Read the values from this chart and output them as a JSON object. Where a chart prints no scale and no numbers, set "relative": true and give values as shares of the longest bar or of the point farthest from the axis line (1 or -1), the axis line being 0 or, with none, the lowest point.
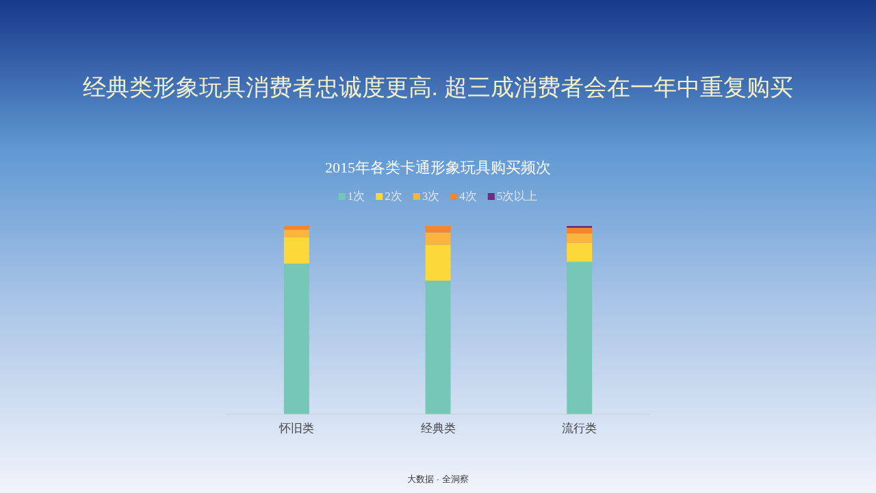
{
  "chart_data": {
    "type": "bar",
    "stacked": true,
    "relative": true,
    "legend": "top",
    "title": "经典类形象玩具消费者忠诚度更高. 超三成消费者会在一年中重复购买",
    "subtitle": "2015年各类卡通形象玩具购买频次",
    "categories": [
      "怀旧类",
      "经典类",
      "流行类"
    ],
    "series": [
      {
        "name": "1次",
        "color": "#76c7b7",
        "values": [
          0.8,
          0.71,
          0.81
        ]
      },
      {
        "name": "2次",
        "color": "#fdd83a",
        "values": [
          0.14,
          0.19,
          0.1
        ]
      },
      {
        "name": "3次",
        "color": "#fbb53c",
        "values": [
          0.04,
          0.065,
          0.05
        ]
      },
      {
        "name": "4次",
        "color": "#f5862b",
        "values": [
          0.02,
          0.035,
          0.03
        ]
      },
      {
        "name": "5次以上",
        "color": "#6b2d7c",
        "values": [
          0,
          0,
          0.01
        ]
      }
    ],
    "annotations": [
      "大数据 · 全洞察"
    ]
  }
}
